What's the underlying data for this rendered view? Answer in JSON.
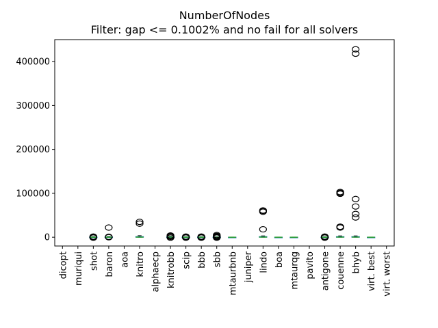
{
  "chart_data": {
    "type": "box",
    "title": "NumberOfNodes",
    "subtitle": "Filter: gap <= 0.1002% and no fail for all solvers",
    "xlabel": "",
    "ylabel": "",
    "ylim": [
      -20000,
      450000
    ],
    "yticks": [
      0,
      100000,
      200000,
      300000,
      400000
    ],
    "ytick_labels": [
      "0",
      "100000",
      "200000",
      "300000",
      "400000"
    ],
    "grid": false,
    "legend": "none",
    "colors": {
      "box": "#1f77b4",
      "median": "#2ca02c",
      "flier": "#000000"
    },
    "categories": [
      "dicopt",
      "muriqui",
      "shot",
      "baron",
      "aoa",
      "knitro",
      "alphaecp",
      "knitrobb",
      "scip",
      "bbb",
      "sbb",
      "mtaurbnb",
      "juniper",
      "lindo",
      "boa",
      "mtaurqg",
      "pavito",
      "antigone",
      "couenne",
      "bhyb",
      "virt. best",
      "virt. worst"
    ],
    "boxes": [
      null,
      null,
      {
        "q1": 0,
        "median": 0,
        "q3": 500,
        "whisker_low": 0,
        "whisker_high": 1200,
        "fliers": [
          -1000,
          0,
          800,
          1500
        ]
      },
      {
        "q1": 0,
        "median": 0,
        "q3": 600,
        "whisker_low": 0,
        "whisker_high": 1500,
        "fliers": [
          0,
          1000,
          22000
        ]
      },
      null,
      {
        "q1": 0,
        "median": 200,
        "q3": 1500,
        "whisker_low": 0,
        "whisker_high": 3500,
        "fliers": [
          31000,
          35000
        ]
      },
      null,
      {
        "q1": 0,
        "median": 200,
        "q3": 800,
        "whisker_low": 0,
        "whisker_high": 2000,
        "fliers": [
          -1000,
          1000,
          3000,
          4000
        ]
      },
      {
        "q1": 0,
        "median": 0,
        "q3": 500,
        "whisker_low": 0,
        "whisker_high": 1000,
        "fliers": [
          -1000,
          0,
          1500
        ]
      },
      {
        "q1": 0,
        "median": 0,
        "q3": 500,
        "whisker_low": 0,
        "whisker_high": 1000,
        "fliers": [
          -1000,
          0,
          1500
        ]
      },
      {
        "q1": 0,
        "median": 0,
        "q3": 500,
        "whisker_low": 0,
        "whisker_high": 1000,
        "fliers": [
          -1000,
          0,
          1500,
          3000,
          5000
        ]
      },
      {
        "q1": 0,
        "median": 0,
        "q3": 200,
        "whisker_low": 0,
        "whisker_high": 300,
        "fliers": []
      },
      null,
      {
        "q1": 0,
        "median": 300,
        "q3": 1500,
        "whisker_low": 0,
        "whisker_high": 3000,
        "fliers": [
          18000,
          58000,
          60000,
          61000
        ]
      },
      {
        "q1": 0,
        "median": 0,
        "q3": 200,
        "whisker_low": 0,
        "whisker_high": 300,
        "fliers": []
      },
      {
        "q1": 0,
        "median": 0,
        "q3": 200,
        "whisker_low": 0,
        "whisker_high": 300,
        "fliers": []
      },
      null,
      {
        "q1": 0,
        "median": 0,
        "q3": 500,
        "whisker_low": 0,
        "whisker_high": 1000,
        "fliers": [
          -1000,
          0,
          1500
        ]
      },
      {
        "q1": 0,
        "median": 300,
        "q3": 1500,
        "whisker_low": 0,
        "whisker_high": 3000,
        "fliers": [
          22000,
          24000,
          99000,
          101000,
          103000
        ]
      },
      {
        "q1": 0,
        "median": 300,
        "q3": 1500,
        "whisker_low": 0,
        "whisker_high": 3000,
        "fliers": [
          45000,
          53000,
          70000,
          87000,
          418000,
          428000
        ]
      },
      {
        "q1": 0,
        "median": 0,
        "q3": 200,
        "whisker_low": 0,
        "whisker_high": 300,
        "fliers": []
      },
      null
    ]
  }
}
